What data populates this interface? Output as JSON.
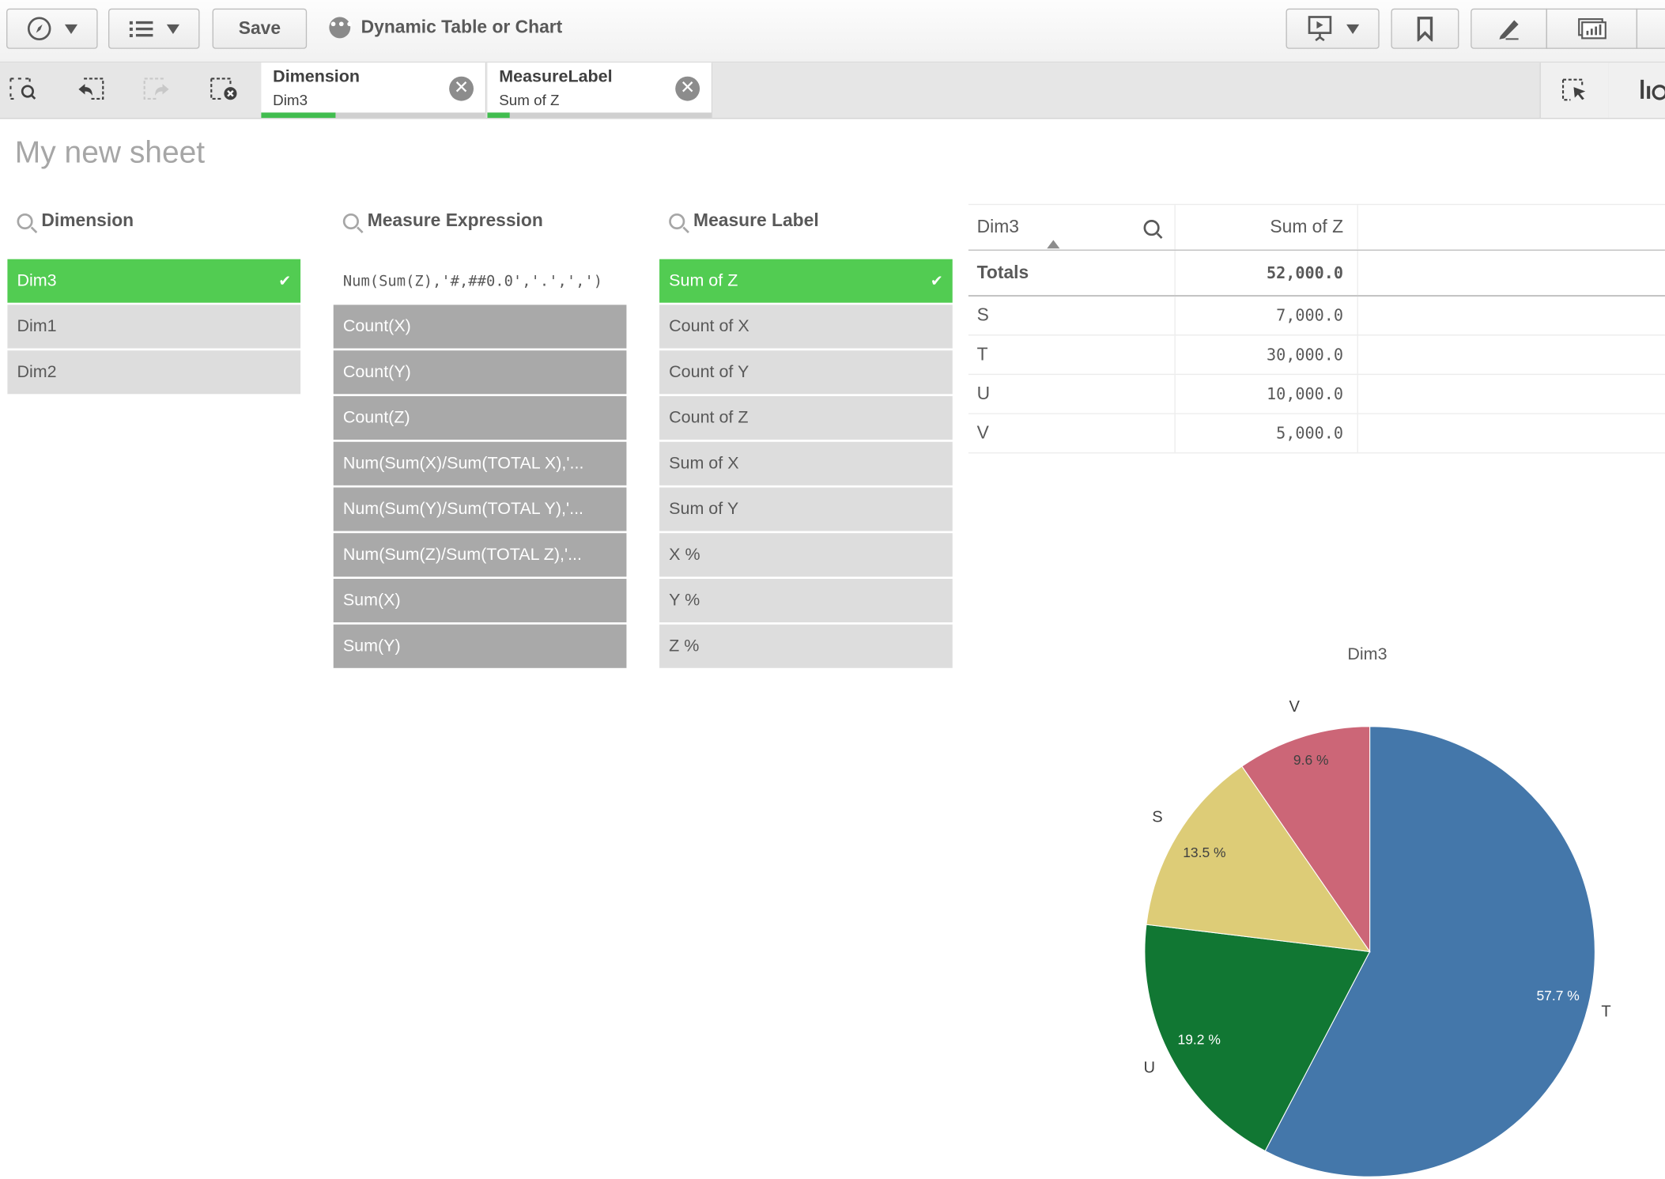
{
  "toolbar": {
    "nav_icon": "compass-icon",
    "list_icon": "list-icon",
    "save_label": "Save",
    "app_title": "Dynamic Table or Chart",
    "app_menu_icon": "more-icon",
    "present_icon": "presentation-icon",
    "bookmark_icon": "bookmark-icon",
    "edit_icon": "pencil-icon",
    "insight_icon": "chart-icon"
  },
  "selections": {
    "tools": [
      "smart-search-icon",
      "step-back-icon",
      "step-forward-icon",
      "clear-all-icon"
    ],
    "tabs": [
      {
        "field": "Dimension",
        "value": "Dim3",
        "bar_pct": 33
      },
      {
        "field": "MeasureLabel",
        "value": "Sum of Z",
        "bar_pct": 10
      }
    ],
    "right_tools": [
      "selections-tool-icon",
      "lines-icon"
    ]
  },
  "sheet": {
    "title": "My new sheet"
  },
  "panes": {
    "dimension": {
      "title": "Dimension",
      "items": [
        {
          "label": "Dim3",
          "state": "selected"
        },
        {
          "label": "Dim1",
          "state": "optional"
        },
        {
          "label": "Dim2",
          "state": "optional"
        }
      ]
    },
    "measure_expression": {
      "title": "Measure Expression",
      "items": [
        {
          "label": "Num(Sum(Z),'#,##0.0','.',',')",
          "state": "possible"
        },
        {
          "label": "Count(X)",
          "state": "excluded"
        },
        {
          "label": "Count(Y)",
          "state": "excluded"
        },
        {
          "label": "Count(Z)",
          "state": "excluded"
        },
        {
          "label": "Num(Sum(X)/Sum(TOTAL X),'...",
          "state": "excluded"
        },
        {
          "label": "Num(Sum(Y)/Sum(TOTAL Y),'...",
          "state": "excluded"
        },
        {
          "label": "Num(Sum(Z)/Sum(TOTAL Z),'...",
          "state": "excluded"
        },
        {
          "label": "Sum(X)",
          "state": "excluded"
        },
        {
          "label": "Sum(Y)",
          "state": "excluded"
        }
      ]
    },
    "measure_label": {
      "title": "Measure Label",
      "items": [
        {
          "label": "Sum of Z",
          "state": "selected"
        },
        {
          "label": "Count of X",
          "state": "optional"
        },
        {
          "label": "Count of Y",
          "state": "optional"
        },
        {
          "label": "Count of Z",
          "state": "optional"
        },
        {
          "label": "Sum of X",
          "state": "optional"
        },
        {
          "label": "Sum of Y",
          "state": "optional"
        },
        {
          "label": "X %",
          "state": "optional"
        },
        {
          "label": "Y %",
          "state": "optional"
        },
        {
          "label": "Z %",
          "state": "optional"
        }
      ]
    }
  },
  "table": {
    "headers": [
      "Dim3",
      "Sum of Z"
    ],
    "totals_label": "Totals",
    "totals_value": "52,000.0",
    "rows": [
      [
        "S",
        "7,000.0"
      ],
      [
        "T",
        "30,000.0"
      ],
      [
        "U",
        "10,000.0"
      ],
      [
        "V",
        "5,000.0"
      ]
    ]
  },
  "colors": {
    "selected": "#52cc52",
    "excluded": "#a9a9a9",
    "optional": "#dddddd",
    "T": "#4477aa",
    "U": "#117733",
    "S": "#ddcc77",
    "V": "#cc6677"
  },
  "chart_data": {
    "type": "pie",
    "title": "Dim3",
    "categories": [
      "T",
      "U",
      "S",
      "V"
    ],
    "values": [
      30000,
      10000,
      7000,
      5000
    ],
    "percent_labels": [
      "57.7 %",
      "19.2 %",
      "13.5 %",
      "9.6 %"
    ],
    "colors": [
      "#4477aa",
      "#117733",
      "#ddcc77",
      "#cc6677"
    ]
  }
}
